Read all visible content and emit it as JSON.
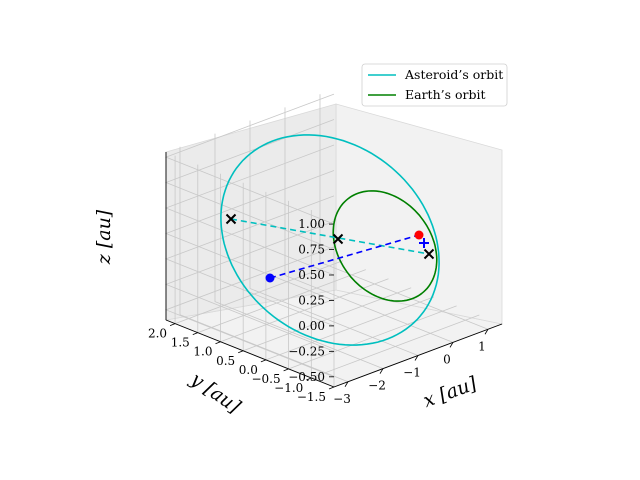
{
  "chart_data": {
    "type": "line3d",
    "xlabel": "x [au]",
    "ylabel": "y [au]",
    "zlabel": "z [au]",
    "xlim": [
      -3.4,
      1.4
    ],
    "ylim": [
      -1.5,
      2.2
    ],
    "zlim": [
      -0.6,
      1.05
    ],
    "xticks": [
      "−3",
      "−2",
      "−1",
      "0",
      "1"
    ],
    "yticks": [
      "−1.5",
      "−1.0",
      "−0.5",
      "0.0",
      "0.5",
      "1.0",
      "1.5",
      "2.0"
    ],
    "zticks": [
      "−0.50",
      "−0.25",
      "0.00",
      "0.25",
      "0.50",
      "0.75",
      "1.00"
    ],
    "grid": true,
    "legend_position": "upper right",
    "series": [
      {
        "name": "Asteroid’s orbit",
        "color": "#00bfbf",
        "style": "solid",
        "shape": "ellipse",
        "semi_major_au": 2.2,
        "eccentricity": 0.55,
        "inclination_deg": 30,
        "center": [
          -1.2,
          0.1,
          0.2
        ]
      },
      {
        "name": "Earth’s orbit",
        "color": "#008000",
        "style": "solid",
        "shape": "ellipse",
        "semi_major_au": 1.0,
        "eccentricity": 0.02,
        "inclination_deg": 23,
        "center": [
          0.0,
          0.0,
          0.0
        ]
      }
    ],
    "markers": [
      {
        "kind": "cross",
        "color": "#000000",
        "point": [
          -2.6,
          2.0,
          0.35
        ]
      },
      {
        "kind": "cross",
        "color": "#000000",
        "point": [
          -0.4,
          0.5,
          0.1
        ]
      },
      {
        "kind": "cross",
        "color": "#000000",
        "point": [
          0.9,
          0.1,
          -0.05
        ]
      },
      {
        "kind": "dot",
        "color": "#ff0000",
        "point": [
          0.7,
          0.3,
          0.15
        ]
      },
      {
        "kind": "dot",
        "color": "#0000ff",
        "point": [
          -2.2,
          0.3,
          -0.25
        ]
      },
      {
        "kind": "plus",
        "color": "#0000ff",
        "point": [
          0.8,
          0.2,
          0.05
        ]
      }
    ],
    "dashed_segments": [
      {
        "color": "#00bfbf",
        "from_marker": 0,
        "to_marker": 2
      },
      {
        "color": "#0000ff",
        "from_marker": 4,
        "to_marker": 3
      }
    ]
  }
}
